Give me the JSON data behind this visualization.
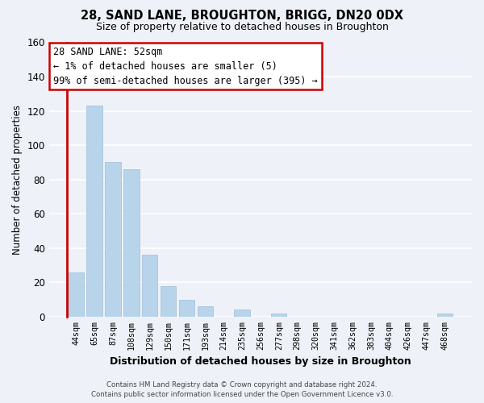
{
  "title": "28, SAND LANE, BROUGHTON, BRIGG, DN20 0DX",
  "subtitle": "Size of property relative to detached houses in Broughton",
  "xlabel": "Distribution of detached houses by size in Broughton",
  "ylabel": "Number of detached properties",
  "bar_labels": [
    "44sqm",
    "65sqm",
    "87sqm",
    "108sqm",
    "129sqm",
    "150sqm",
    "171sqm",
    "193sqm",
    "214sqm",
    "235sqm",
    "256sqm",
    "277sqm",
    "298sqm",
    "320sqm",
    "341sqm",
    "362sqm",
    "383sqm",
    "404sqm",
    "426sqm",
    "447sqm",
    "468sqm"
  ],
  "bar_values": [
    26,
    123,
    90,
    86,
    36,
    18,
    10,
    6,
    0,
    4,
    0,
    2,
    0,
    0,
    0,
    0,
    0,
    0,
    0,
    0,
    2
  ],
  "bar_color": "#b8d4ea",
  "ylim": [
    0,
    160
  ],
  "yticks": [
    0,
    20,
    40,
    60,
    80,
    100,
    120,
    140,
    160
  ],
  "annotation_text": "28 SAND LANE: 52sqm\n← 1% of detached houses are smaller (5)\n99% of semi-detached houses are larger (395) →",
  "annotation_box_color": "#ffffff",
  "annotation_box_edge": "#cc0000",
  "footer_line1": "Contains HM Land Registry data © Crown copyright and database right 2024.",
  "footer_line2": "Contains public sector information licensed under the Open Government Licence v3.0.",
  "bg_color": "#eef2f8",
  "grid_color": "#ffffff",
  "red_line_color": "#cc0000"
}
